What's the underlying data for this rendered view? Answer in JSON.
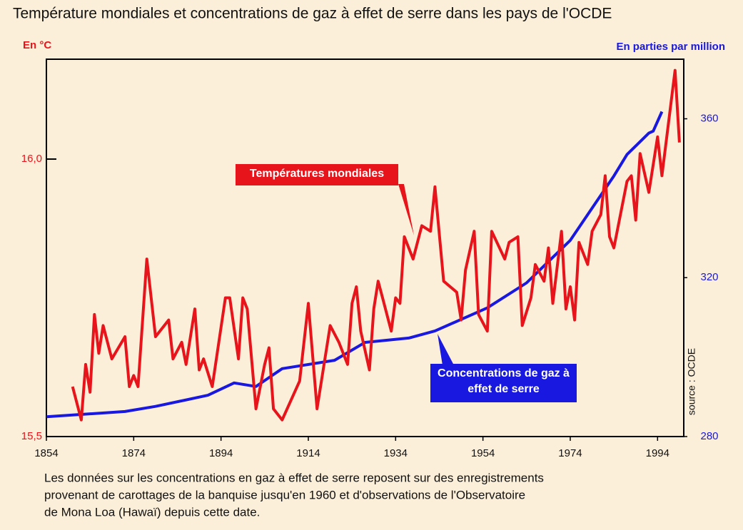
{
  "chart_data": {
    "type": "line",
    "title": "Température mondiales et concentrations de gaz à effet de serre dans les pays de l'OCDE",
    "y_label": "En °C",
    "y2_label": "En parties par million",
    "source": "source : OCDE",
    "xlim": [
      1854,
      2000
    ],
    "xticks": [
      1854,
      1874,
      1894,
      1914,
      1934,
      1954,
      1974,
      1994
    ],
    "ylim": [
      15.5,
      16.18
    ],
    "yticks": [
      {
        "value": 15.5,
        "label": "15,5"
      },
      {
        "value": 16,
        "label": "16,0"
      }
    ],
    "y2lim": [
      280,
      375
    ],
    "y2ticks": [
      280,
      320,
      360
    ],
    "series": [
      {
        "name": "Températures mondiales",
        "color": "#e8141c",
        "axis": "y",
        "x": [
          1860,
          1862,
          1863,
          1864,
          1865,
          1866,
          1867,
          1869,
          1872,
          1873,
          1874,
          1875,
          1877,
          1879,
          1882,
          1883,
          1885,
          1886,
          1888,
          1889,
          1890,
          1892,
          1895,
          1896,
          1898,
          1899,
          1900,
          1902,
          1904,
          1905,
          1906,
          1908,
          1912,
          1914,
          1916,
          1919,
          1921,
          1923,
          1924,
          1925,
          1926,
          1928,
          1929,
          1930,
          1931,
          1933,
          1934,
          1935,
          1936,
          1938,
          1940,
          1942,
          1943,
          1945,
          1948,
          1949,
          1950,
          1952,
          1953,
          1955,
          1956,
          1959,
          1960,
          1962,
          1963,
          1965,
          1966,
          1968,
          1969,
          1970,
          1972,
          1973,
          1974,
          1975,
          1976,
          1978,
          1979,
          1981,
          1982,
          1983,
          1984,
          1987,
          1988,
          1989,
          1990,
          1992,
          1994,
          1995,
          1998,
          1999
        ],
        "values": [
          15.59,
          15.53,
          15.63,
          15.58,
          15.72,
          15.65,
          15.7,
          15.64,
          15.68,
          15.59,
          15.61,
          15.59,
          15.82,
          15.68,
          15.71,
          15.64,
          15.67,
          15.63,
          15.73,
          15.62,
          15.64,
          15.59,
          15.75,
          15.75,
          15.64,
          15.75,
          15.73,
          15.55,
          15.63,
          15.66,
          15.55,
          15.53,
          15.6,
          15.74,
          15.55,
          15.7,
          15.67,
          15.63,
          15.74,
          15.77,
          15.69,
          15.62,
          15.73,
          15.78,
          15.75,
          15.69,
          15.75,
          15.74,
          15.86,
          15.82,
          15.88,
          15.87,
          15.95,
          15.78,
          15.76,
          15.71,
          15.8,
          15.87,
          15.72,
          15.69,
          15.87,
          15.82,
          15.85,
          15.86,
          15.7,
          15.75,
          15.81,
          15.78,
          15.84,
          15.74,
          15.87,
          15.73,
          15.77,
          15.71,
          15.85,
          15.81,
          15.87,
          15.9,
          15.97,
          15.86,
          15.84,
          15.96,
          15.97,
          15.89,
          16.01,
          15.94,
          16.04,
          15.97,
          16.16,
          16.03
        ]
      },
      {
        "name": "Concentrations de gaz à effet de serre",
        "color": "#1818e0",
        "axis": "y2",
        "x": [
          1854,
          1872,
          1879,
          1891,
          1897,
          1902,
          1908,
          1920,
          1927,
          1937,
          1943,
          1955,
          1964,
          1974,
          1984,
          1987,
          1992,
          1993,
          1995
        ],
        "values": [
          285.0,
          286.3,
          287.6,
          290.4,
          293.5,
          292.6,
          297.1,
          299.2,
          303.7,
          304.8,
          306.6,
          312.4,
          318.7,
          329.4,
          345.6,
          351.0,
          356.4,
          356.9,
          361.8
        ]
      }
    ],
    "note": [
      "Les données sur les concentrations en gaz à effet de serre reposent sur des enregistrements",
      "provenant de carottages de la banquise jusqu'en 1960 et d'observations de l'Observatoire",
      "de Mona Loa (Hawaï) depuis cette date."
    ]
  }
}
